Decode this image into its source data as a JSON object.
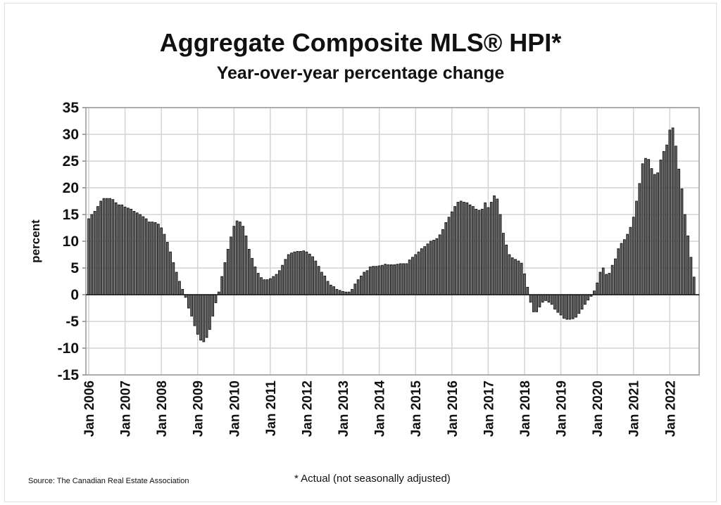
{
  "chart_data": {
    "type": "bar",
    "title": "Aggregate Composite MLS® HPI*",
    "subtitle": "Year-over-year percentage change",
    "xlabel": "",
    "ylabel": "percent",
    "ylim": [
      -15,
      35
    ],
    "yticks": [
      35,
      30,
      25,
      20,
      15,
      10,
      5,
      0,
      -5,
      -10,
      -15
    ],
    "xtick_labels": [
      "Jan 2006",
      "Jan 2007",
      "Jan 2008",
      "Jan 2009",
      "Jan 2010",
      "Jan 2011",
      "Jan 2012",
      "Jan 2013",
      "Jan 2014",
      "Jan 2015",
      "Jan 2016",
      "Jan 2017",
      "Jan 2018",
      "Jan 2019",
      "Jan 2020",
      "Jan 2021",
      "Jan 2022"
    ],
    "start": "Jan 2006",
    "frequency": "monthly",
    "grid": true,
    "values": [
      14.2,
      15,
      15.6,
      16.5,
      17.5,
      18,
      18,
      18,
      17.8,
      17.2,
      16.8,
      16.8,
      16.4,
      16.2,
      16,
      15.6,
      15.3,
      15,
      14.6,
      14.2,
      13.6,
      13.6,
      13.5,
      13.2,
      12.5,
      11.3,
      9.8,
      8,
      6,
      4.2,
      2.5,
      1,
      -0.5,
      -2.5,
      -4,
      -5.8,
      -7.4,
      -8.5,
      -8.8,
      -8,
      -6.5,
      -4,
      -1.5,
      0.5,
      3.4,
      6,
      8.5,
      10.8,
      12.8,
      13.8,
      13.6,
      12.8,
      11,
      8.5,
      6.8,
      5.2,
      4,
      3.2,
      2.8,
      2.8,
      3,
      3.4,
      3.8,
      4.5,
      5.5,
      6.6,
      7.5,
      7.8,
      8,
      8.1,
      8.1,
      8.2,
      8,
      7.6,
      7.1,
      6.3,
      5.3,
      4.2,
      3.5,
      2.5,
      1.8,
      1.5,
      1,
      0.8,
      0.6,
      0.5,
      0.5,
      1,
      2,
      2.8,
      3.5,
      4.2,
      4.5,
      5.2,
      5.3,
      5.3,
      5.4,
      5.5,
      5.7,
      5.6,
      5.6,
      5.6,
      5.7,
      5.8,
      5.8,
      5.8,
      6.5,
      7,
      7.5,
      8,
      8.6,
      9,
      9.5,
      10,
      10.2,
      10.5,
      11.2,
      12.2,
      13.5,
      14.5,
      15.5,
      16.5,
      17.3,
      17.5,
      17.3,
      17.2,
      16.8,
      16.5,
      16,
      15.8,
      16,
      17.2,
      16.3,
      17.3,
      18.5,
      17.9,
      15,
      11.5,
      9.3,
      7.5,
      6.9,
      6.6,
      6.3,
      5.9,
      3.9,
      1.4,
      -1.4,
      -3.2,
      -3.2,
      -2.3,
      -1.4,
      -1.1,
      -1.4,
      -1.8,
      -2.7,
      -3.3,
      -3.8,
      -4.4,
      -4.6,
      -4.6,
      -4.5,
      -4.2,
      -3.5,
      -2.7,
      -1.8,
      -1,
      -0.3,
      0.7,
      2.2,
      4.2,
      5,
      3.8,
      4,
      5.5,
      6.7,
      8.6,
      9.6,
      10.3,
      11.3,
      12.6,
      14.5,
      17.5,
      20.8,
      24.5,
      25.5,
      25.3,
      23.6,
      22.5,
      22.8,
      25.2,
      26.8,
      28,
      30.8,
      31.2,
      27.8,
      23.5,
      19.8,
      15,
      11,
      7,
      3.3
    ],
    "source": "Source: The Canadian Real Estate Association",
    "footnote": "* Actual (not seasonally adjusted)"
  }
}
